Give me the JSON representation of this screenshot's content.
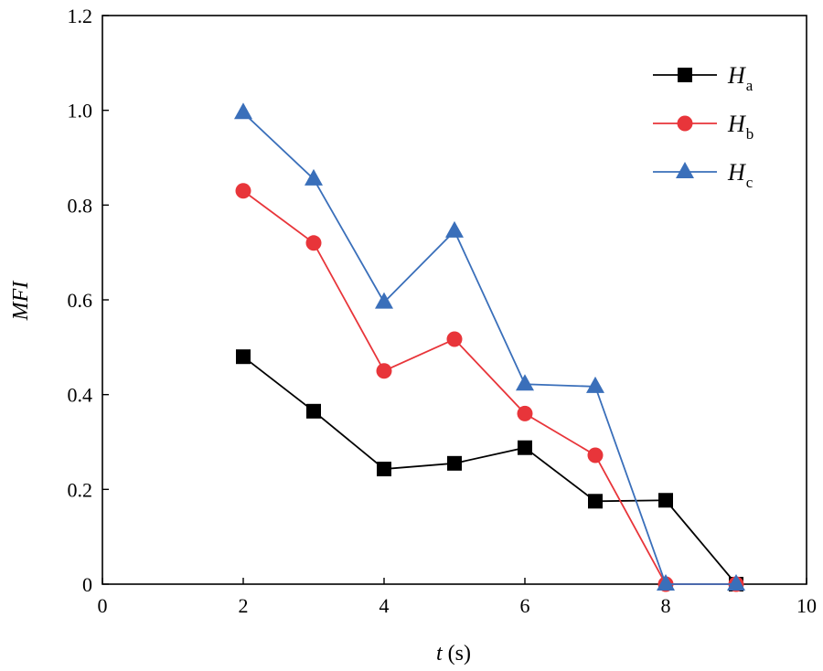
{
  "chart_data": {
    "type": "line",
    "title": "",
    "xlabel": "t (s)",
    "xlabel_var": "t",
    "xlabel_unit": " (s)",
    "ylabel": "MFI",
    "xlim": [
      0,
      10
    ],
    "ylim": [
      0,
      1.2
    ],
    "xticks": [
      0,
      2,
      4,
      6,
      8,
      10
    ],
    "xtick_labels": [
      "0",
      "2",
      "4",
      "6",
      "8",
      "10"
    ],
    "yticks": [
      0,
      0.2,
      0.4,
      0.6,
      0.8,
      1.0,
      1.2
    ],
    "ytick_labels": [
      "0",
      "0.2",
      "0.4",
      "0.6",
      "0.8",
      "1.0",
      "1.2"
    ],
    "grid": false,
    "legend_position": "top-right",
    "series": [
      {
        "name": "Ha",
        "label_main": "H",
        "label_sub": "a",
        "color": "#000000",
        "marker": "square",
        "x": [
          2,
          3,
          4,
          5,
          6,
          7,
          8,
          9
        ],
        "y": [
          0.48,
          0.365,
          0.243,
          0.255,
          0.288,
          0.175,
          0.177,
          0.0
        ]
      },
      {
        "name": "Hb",
        "label_main": "H",
        "label_sub": "b",
        "color": "#e8353a",
        "marker": "circle",
        "x": [
          2,
          3,
          4,
          5,
          6,
          7,
          8,
          9
        ],
        "y": [
          0.83,
          0.72,
          0.45,
          0.517,
          0.36,
          0.272,
          0.0,
          0.0
        ]
      },
      {
        "name": "Hc",
        "label_main": "H",
        "label_sub": "c",
        "color": "#3a6fba",
        "marker": "triangle",
        "x": [
          2,
          3,
          4,
          5,
          6,
          7,
          8,
          9
        ],
        "y": [
          0.995,
          0.855,
          0.595,
          0.745,
          0.422,
          0.417,
          0.0,
          0.0
        ]
      }
    ]
  }
}
